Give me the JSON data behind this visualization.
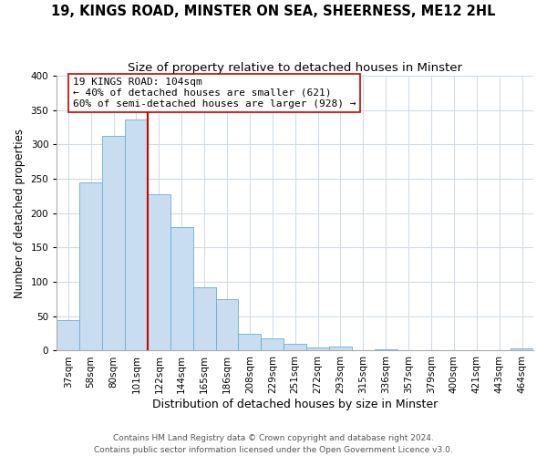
{
  "title1": "19, KINGS ROAD, MINSTER ON SEA, SHEERNESS, ME12 2HL",
  "title2": "Size of property relative to detached houses in Minster",
  "xlabel": "Distribution of detached houses by size in Minster",
  "ylabel": "Number of detached properties",
  "bar_labels": [
    "37sqm",
    "58sqm",
    "80sqm",
    "101sqm",
    "122sqm",
    "144sqm",
    "165sqm",
    "186sqm",
    "208sqm",
    "229sqm",
    "251sqm",
    "272sqm",
    "293sqm",
    "315sqm",
    "336sqm",
    "357sqm",
    "379sqm",
    "400sqm",
    "421sqm",
    "443sqm",
    "464sqm"
  ],
  "bar_values": [
    44,
    245,
    313,
    336,
    228,
    180,
    92,
    75,
    25,
    18,
    10,
    4,
    6,
    0,
    2,
    0,
    0,
    0,
    0,
    0,
    3
  ],
  "bar_color": "#c8ddef",
  "bar_edge_color": "#6aadd5",
  "vline_x_idx": 3,
  "vline_color": "#cc0000",
  "annotation_title": "19 KINGS ROAD: 104sqm",
  "annotation_line1": "← 40% of detached houses are smaller (621)",
  "annotation_line2": "60% of semi-detached houses are larger (928) →",
  "annotation_box_color": "#ffffff",
  "annotation_box_edge": "#cc0000",
  "ylim": [
    0,
    400
  ],
  "yticks": [
    0,
    50,
    100,
    150,
    200,
    250,
    300,
    350,
    400
  ],
  "footer1": "Contains HM Land Registry data © Crown copyright and database right 2024.",
  "footer2": "Contains public sector information licensed under the Open Government Licence v3.0.",
  "title1_fontsize": 10.5,
  "title2_fontsize": 9.5,
  "xlabel_fontsize": 9,
  "ylabel_fontsize": 8.5,
  "tick_fontsize": 7.5,
  "footer_fontsize": 6.5,
  "annotation_fontsize": 8,
  "grid_color": "#d0dce8",
  "background_color": "#ffffff"
}
